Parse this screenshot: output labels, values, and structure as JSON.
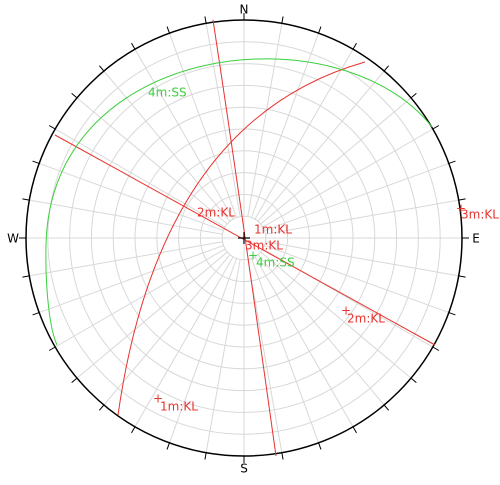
{
  "compass": {
    "north": "N",
    "south": "S",
    "east": "E",
    "west": "W"
  },
  "plot_labels": [
    "4m:SS",
    "2m:KL",
    "1m:KL",
    "3m:KL",
    "4m:SS",
    "2m:KL",
    "1m:KL",
    "3m:KL"
  ]
}
